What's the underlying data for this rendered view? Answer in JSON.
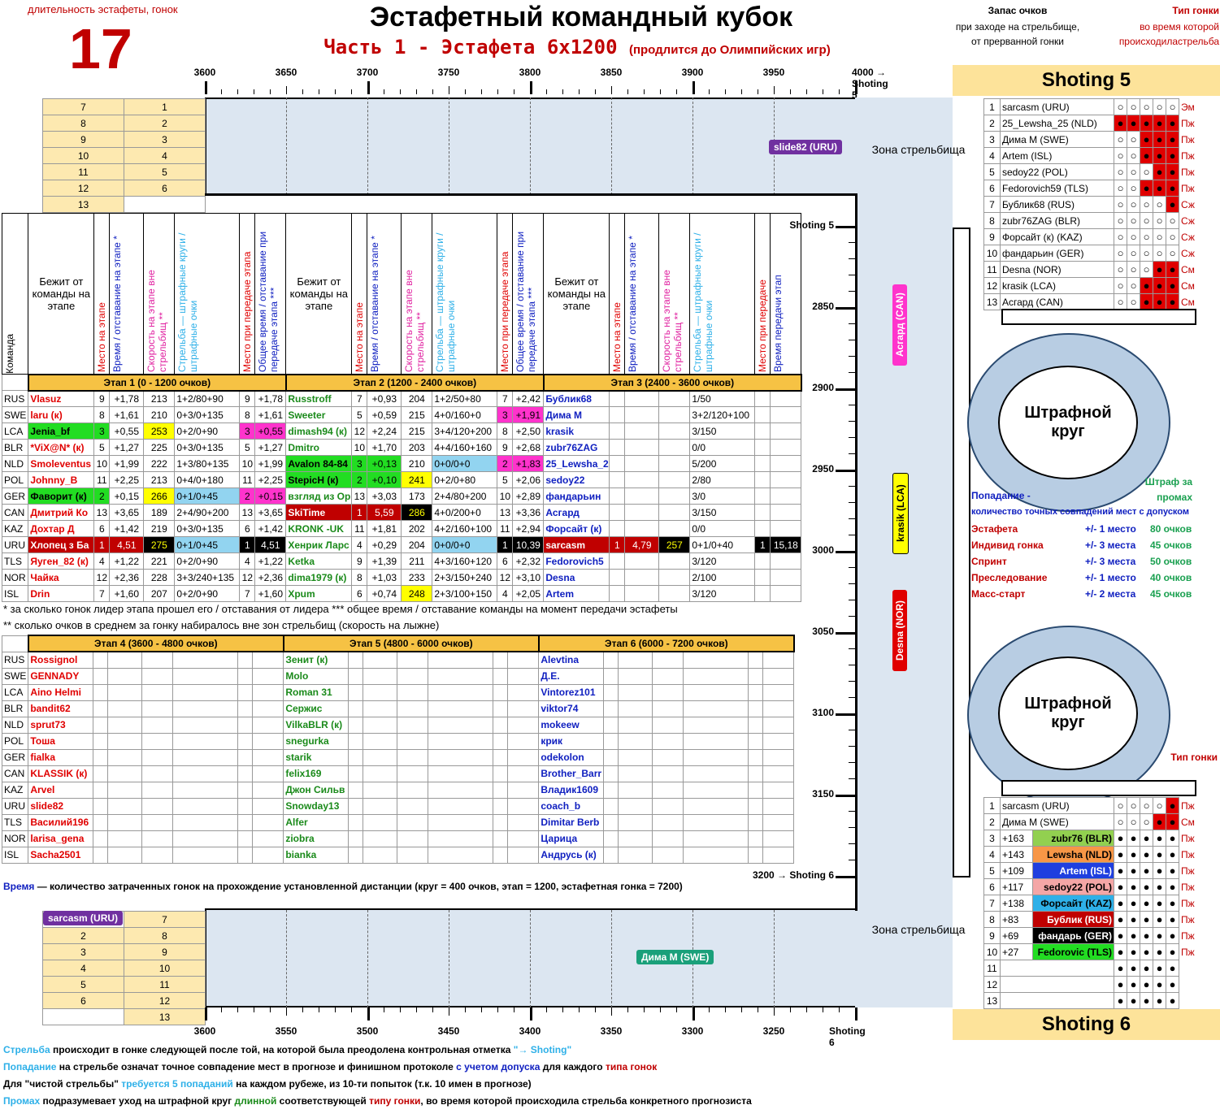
{
  "header": {
    "duration_label": "длительность эстафеты, гонок",
    "duration_value": "17",
    "title": "Эстафетный командный кубок",
    "subtitle": "Часть 1 - Эстафета 6х1200",
    "subtitle_note": "(продлится до Олимпийских игр)"
  },
  "top_ruler": [
    "3600",
    "3650",
    "3700",
    "3750",
    "3800",
    "3850",
    "3900",
    "3950",
    "4000 → Shoting 5"
  ],
  "bottom_ruler": [
    "3600",
    "3550",
    "3500",
    "3450",
    "3400",
    "3350",
    "3300",
    "3250",
    "Shoting 6"
  ],
  "right_ruler": [
    "Shoting 5",
    "2850",
    "2900",
    "2950",
    "3000",
    "3050",
    "3100",
    "3150",
    "3200 → Shoting 6"
  ],
  "top_rank_pairs": [
    [
      "7",
      "1"
    ],
    [
      "8",
      "2"
    ],
    [
      "9",
      "3"
    ],
    [
      "10",
      "4"
    ],
    [
      "11",
      "5"
    ],
    [
      "12",
      "6"
    ],
    [
      "13",
      ""
    ]
  ],
  "bottom_rank_pairs": [
    [
      "",
      "7"
    ],
    [
      "2",
      "8"
    ],
    [
      "3",
      "9"
    ],
    [
      "4",
      "10"
    ],
    [
      "5",
      "11"
    ],
    [
      "6",
      "12"
    ],
    [
      "",
      "13"
    ]
  ],
  "track_pills": {
    "top": "slide82 (URU)",
    "bottom": "Дима М (SWE)",
    "bottom_left": "sarcasm (URU)",
    "v1": "Асгард (CAN)",
    "v2": "krasik (LCA)",
    "v3": "Desna (NOR)"
  },
  "zones": {
    "zone1": "Зона стрельбища",
    "zone2": "Зона стрельбища",
    "penalty1": "Штрафной круг",
    "penalty2": "Штрафной круг"
  },
  "col_headers": {
    "team": "Команда",
    "runner": "Бежит от команды на этапе",
    "place": "Место на этапе",
    "time": "Время / отставание на этапе *",
    "speed": "Скорость на этапе вне стрельбищ **",
    "shoot": "Стрельба — штрафные круги / штрафные очки",
    "handoff_place": "Место при передаче этапа",
    "total": "Общее время / отставание при передаче этапа ***",
    "final_place": "Место при передаче",
    "final_time": "Время передачи этап"
  },
  "stages": [
    "Этап 1  (0 - 1200 очков)",
    "Этап 2  (1200 - 2400 очков)",
    "Этап 3  (2400 - 3600 очков)",
    "Этап 4  (3600 - 4800 очков)",
    "Этап 5  (4800 - 6000 очков)",
    "Этап 6  (6000 - 7200 очков)"
  ],
  "teams": [
    "RUS",
    "SWE",
    "LCA",
    "BLR",
    "NLD",
    "POL",
    "GER",
    "CAN",
    "KAZ",
    "URU",
    "TLS",
    "NOR",
    "ISL"
  ],
  "stage1": [
    [
      "Vlasuz",
      "9",
      "+1,78",
      "213",
      "1+2/80+90",
      "9",
      "+1,78"
    ],
    [
      "laru (к)",
      "8",
      "+1,61",
      "210",
      "0+3/0+135",
      "8",
      "+1,61"
    ],
    [
      "Jenia_bf",
      "3",
      "+0,55",
      "253",
      "0+2/0+90",
      "3",
      "+0,55"
    ],
    [
      "*ViX@N* (к)",
      "5",
      "+1,27",
      "225",
      "0+3/0+135",
      "5",
      "+1,27"
    ],
    [
      "Smoleventus",
      "10",
      "+1,99",
      "222",
      "1+3/80+135",
      "10",
      "+1,99"
    ],
    [
      "Johnny_B",
      "11",
      "+2,25",
      "213",
      "0+4/0+180",
      "11",
      "+2,25"
    ],
    [
      "Фаворит (к)",
      "2",
      "+0,15",
      "266",
      "0+1/0+45",
      "2",
      "+0,15"
    ],
    [
      "Дмитрий Ко",
      "13",
      "+3,65",
      "189",
      "2+4/90+200",
      "13",
      "+3,65"
    ],
    [
      "Дохтар Д",
      "6",
      "+1,42",
      "219",
      "0+3/0+135",
      "6",
      "+1,42"
    ],
    [
      "Хлопец з Ба",
      "1",
      "4,51",
      "275",
      "0+1/0+45",
      "1",
      "4,51"
    ],
    [
      "Яуген_82 (к)",
      "4",
      "+1,22",
      "221",
      "0+2/0+90",
      "4",
      "+1,22"
    ],
    [
      "Чайка",
      "12",
      "+2,36",
      "228",
      "3+3/240+135",
      "12",
      "+2,36"
    ],
    [
      "Drin",
      "7",
      "+1,60",
      "207",
      "0+2/0+90",
      "7",
      "+1,60"
    ]
  ],
  "stage2": [
    [
      "Russtroff",
      "7",
      "+0,93",
      "204",
      "1+2/50+80",
      "7",
      "+2,42"
    ],
    [
      "Sweeter",
      "5",
      "+0,59",
      "215",
      "4+0/160+0",
      "3",
      "+1,91"
    ],
    [
      "dimash94 (к)",
      "12",
      "+2,24",
      "215",
      "3+4/120+200",
      "8",
      "+2,50"
    ],
    [
      "Dmitro",
      "10",
      "+1,70",
      "203",
      "4+4/160+160",
      "9",
      "+2,68"
    ],
    [
      "Avalon 84-84",
      "3",
      "+0,13",
      "210",
      "0+0/0+0",
      "2",
      "+1,83"
    ],
    [
      "StepicH (к)",
      "2",
      "+0,10",
      "241",
      "0+2/0+80",
      "5",
      "+2,06"
    ],
    [
      "взгляд из Ор",
      "13",
      "+3,03",
      "173",
      "2+4/80+200",
      "10",
      "+2,89"
    ],
    [
      "SkiTime",
      "1",
      "5,59",
      "286",
      "4+0/200+0",
      "13",
      "+3,36"
    ],
    [
      "KRONK -UK",
      "11",
      "+1,81",
      "202",
      "4+2/160+100",
      "11",
      "+2,94"
    ],
    [
      "Хенрик Ларс",
      "4",
      "+0,29",
      "204",
      "0+0/0+0",
      "1",
      "10,39"
    ],
    [
      "Ketka",
      "9",
      "+1,39",
      "211",
      "4+3/160+120",
      "6",
      "+2,32"
    ],
    [
      "dima1979 (к)",
      "8",
      "+1,03",
      "233",
      "2+3/150+240",
      "12",
      "+3,10"
    ],
    [
      "Xpum",
      "6",
      "+0,74",
      "248",
      "2+3/100+150",
      "4",
      "+2,05"
    ]
  ],
  "stage3": [
    [
      "Бублик68",
      "",
      "",
      "",
      "1/50",
      "",
      ""
    ],
    [
      "Дима М",
      "",
      "",
      "",
      "3+2/120+100",
      "",
      ""
    ],
    [
      "krasik",
      "",
      "",
      "",
      "3/150",
      "",
      ""
    ],
    [
      "zubr76ZAG",
      "",
      "",
      "",
      "0/0",
      "",
      ""
    ],
    [
      "25_Lewsha_2",
      "",
      "",
      "",
      "5/200",
      "",
      ""
    ],
    [
      "sedoy22",
      "",
      "",
      "",
      "2/80",
      "",
      ""
    ],
    [
      "фандарьин",
      "",
      "",
      "",
      "3/0",
      "",
      ""
    ],
    [
      "Асгард",
      "",
      "",
      "",
      "3/150",
      "",
      ""
    ],
    [
      "Форсайт (к)",
      "",
      "",
      "",
      "0/0",
      "",
      ""
    ],
    [
      "sarcasm",
      "1",
      "4,79",
      "257",
      "0+1/0+40",
      "1",
      "15,18"
    ],
    [
      "Fedorovich5",
      "",
      "",
      "",
      "3/120",
      "",
      ""
    ],
    [
      "Desna",
      "",
      "",
      "",
      "2/100",
      "",
      ""
    ],
    [
      "Artem",
      "",
      "",
      "",
      "3/120",
      "",
      ""
    ]
  ],
  "stage4": [
    "Rossignol",
    "GENNADY",
    "Aino Helmi",
    "bandit62",
    "sprut73",
    "Тоша",
    "fialka",
    "KLASSIK (к)",
    "Arvel",
    "slide82",
    "Василий196",
    "larisa_gena",
    "Sacha2501"
  ],
  "stage5": [
    "Зенит (к)",
    "Molo",
    "Roman 31",
    "Сержис",
    "VilkaBLR (к)",
    "snegurka",
    "starik",
    "felix169",
    "Джон Сильв",
    "Snowday13",
    "Alfer",
    "ziobra",
    "bianka"
  ],
  "stage6": [
    "Alevtina",
    "Д.Е.",
    "Vintorez101",
    "viktor74",
    "mokeew",
    "крик",
    "odekolon",
    "Brother_Barr",
    "Владик1609",
    "coach_b",
    "Dimitar Berb",
    "Царица",
    "Андрусь (к)"
  ],
  "footnote1": "* за сколько гонок лидер этапа прошел его / отставания от лидера *** общее время / отставание команды на момент передачи эстафеты",
  "footnote2": "** сколько очков в среднем за гонку набиралось вне зон стрельбищ (скорость на лыжне)",
  "time_note_word": "Время",
  "time_note": " — количество затраченных гонок на прохождение установленной дистанции (круг = 400 очков, этап = 1200, эстафетная гонка = 7200)",
  "right_panel": {
    "reserve_title": "Запас очков",
    "reserve_sub": "при заходе на стрельбище, от прерванной гонки",
    "race_type_title": "Тип гонки",
    "race_type_sub": "во время которой происходиластрельба",
    "shoting5": "Shoting 5",
    "shoting6": "Shoting 6",
    "race_type2": "Тип гонки"
  },
  "shoting5_rows": [
    {
      "n": "1",
      "name": "sarcasm (URU)",
      "hits": 0,
      "type": "Эм"
    },
    {
      "n": "2",
      "name": "25_Lewsha_25 (NLD)",
      "hits": 5,
      "type": "Пж"
    },
    {
      "n": "3",
      "name": "Дима М (SWE)",
      "hits": 3,
      "type": "Пж"
    },
    {
      "n": "4",
      "name": "Artem (ISL)",
      "hits": 3,
      "type": "Пж"
    },
    {
      "n": "5",
      "name": "sedoy22  (POL)",
      "hits": 2,
      "type": "Пж"
    },
    {
      "n": "6",
      "name": "Fedorovich59 (TLS)",
      "hits": 3,
      "type": "Пж"
    },
    {
      "n": "7",
      "name": "Бублик68 (RUS)",
      "hits": 1,
      "type": "Сж"
    },
    {
      "n": "8",
      "name": "zubr76ZAG (BLR)",
      "hits": 0,
      "type": "Сж"
    },
    {
      "n": "9",
      "name": "Форсайт (к) (KAZ)",
      "hits": 0,
      "type": "Сж"
    },
    {
      "n": "10",
      "name": "фандарьин (GER)",
      "hits": 0,
      "type": "Сж"
    },
    {
      "n": "11",
      "name": "Desna (NOR)",
      "hits": 2,
      "type": "См"
    },
    {
      "n": "12",
      "name": "krasik (LCA)",
      "hits": 3,
      "type": "См"
    },
    {
      "n": "13",
      "name": "Асгард (CAN)",
      "hits": 3,
      "type": "См"
    }
  ],
  "shoting6_rows": [
    {
      "n": "1",
      "res": "",
      "name": "sarcasm (URU)",
      "color": "#ffffff",
      "hits": 1,
      "type": "Пж",
      "filled": false
    },
    {
      "n": "2",
      "res": "",
      "name": "Дима М (SWE)",
      "color": "#ffffff",
      "hits": 2,
      "type": "См",
      "filled": false
    },
    {
      "n": "3",
      "res": "+163",
      "name": "zubr76 (BLR)",
      "color": "#92d050",
      "hits": 0,
      "type": "Пж",
      "filled": true
    },
    {
      "n": "4",
      "res": "+143",
      "name": "Lewsha (NLD)",
      "color": "#f79646",
      "hits": 0,
      "type": "Пж",
      "filled": true
    },
    {
      "n": "5",
      "res": "+109",
      "name": "Artem (ISL)",
      "color": "#1f3fdf",
      "hits": 0,
      "type": "Пж",
      "filled": true
    },
    {
      "n": "6",
      "res": "+117",
      "name": "sedoy22 (POL)",
      "color": "#f4a6a6",
      "hits": 0,
      "type": "Пж",
      "filled": true
    },
    {
      "n": "7",
      "res": "+138",
      "name": "Форсайт (KAZ)",
      "color": "#2eb0e8",
      "hits": 0,
      "type": "Пж",
      "filled": true
    },
    {
      "n": "8",
      "res": "+83",
      "name": "Бублик (RUS)",
      "color": "#c00000",
      "hits": 0,
      "type": "Пж",
      "filled": true
    },
    {
      "n": "9",
      "res": "+69",
      "name": "фандарь (GER)",
      "color": "#000000",
      "hits": 0,
      "type": "Пж",
      "filled": true
    },
    {
      "n": "10",
      "res": "+27",
      "name": "Fedorovic (TLS)",
      "color": "#22dd22",
      "hits": 0,
      "type": "Пж",
      "filled": true
    },
    {
      "n": "11",
      "res": "",
      "name": "",
      "color": "#ffffff",
      "hits": 0,
      "type": "",
      "filled": true
    },
    {
      "n": "12",
      "res": "",
      "name": "",
      "color": "#ffffff",
      "hits": 0,
      "type": "",
      "filled": true
    },
    {
      "n": "13",
      "res": "",
      "name": "",
      "color": "#ffffff",
      "hits": 0,
      "type": "",
      "filled": true
    }
  ],
  "legend": {
    "hit_title": "Попадание -",
    "hit_sub": "количество точных совпадений мест с допуском",
    "penalty_title": "Штраф за промах",
    "rows": [
      [
        "Эстафета",
        "+/- 1 место",
        "80 очков"
      ],
      [
        "Индивид гонка",
        "+/- 3 места",
        "45 очков"
      ],
      [
        "Спринт",
        "+/- 3 места",
        "50 очков"
      ],
      [
        "Преследование",
        "+/- 1 место",
        "40 очков"
      ],
      [
        "Масс-старт",
        "+/- 2 места",
        "45 очков"
      ]
    ]
  },
  "bottom_notes": [
    [
      [
        "Стрельба",
        "#2eb0e8"
      ],
      [
        " происходит в гонке следующей после той, на которой была преодолена контрольная отметка ",
        "#000"
      ],
      [
        "\"→ Shoting\"",
        "#2eb0e8"
      ]
    ],
    [
      [
        "Попадание",
        "#2eb0e8"
      ],
      [
        " на стрельбе означат точное совпадение мест в прогнозе и финишном протоколе ",
        "#000"
      ],
      [
        "с учетом допуска",
        "#1020c0"
      ],
      [
        " для каждого ",
        "#000"
      ],
      [
        "типа гонок",
        "#c00000"
      ]
    ],
    [
      [
        "Для \"чистой стрельбы\" ",
        "#000"
      ],
      [
        "требуется 5 попаданий",
        "#2eb0e8"
      ],
      [
        " на каждом рубеже, из 10-ти попыток (т.к. 10 имен в прогнозе)",
        "#000"
      ]
    ],
    [
      [
        "Промах",
        "#2eb0e8"
      ],
      [
        " подразумевает уход на штрафной круг ",
        "#000"
      ],
      [
        "длинной",
        "#1a8a1a"
      ],
      [
        " соответствующей ",
        "#000"
      ],
      [
        "типу гонки",
        "#c00000"
      ],
      [
        ", во время которой происходила стрельба конкретного прогнозиста",
        "#000"
      ]
    ]
  ]
}
